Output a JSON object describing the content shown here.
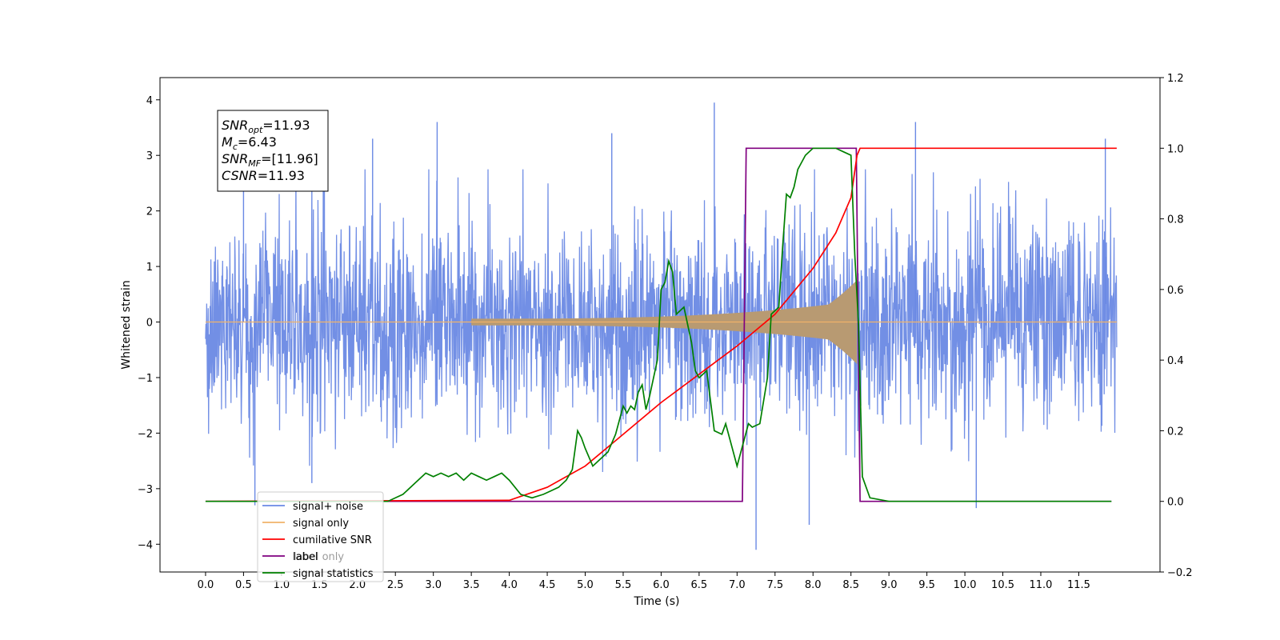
{
  "chart_data": {
    "type": "line",
    "xlabel": "Time (s)",
    "ylabel": "Whitened strain",
    "xlim": [
      -0.6,
      12.57
    ],
    "ylim": [
      -4.5,
      4.4
    ],
    "y2lim": [
      -0.2,
      1.2
    ],
    "x_ticks": [
      "0.0",
      "0.5",
      "1.0",
      "1.5",
      "2.0",
      "2.5",
      "3.0",
      "3.5",
      "4.0",
      "4.5",
      "5.0",
      "5.5",
      "6.0",
      "6.5",
      "7.0",
      "7.5",
      "8.0",
      "8.5",
      "9.0",
      "9.5",
      "10.0",
      "10.5",
      "11.0",
      "11.5"
    ],
    "y_ticks": [
      "4",
      "3",
      "2",
      "1",
      "0",
      "−1",
      "−2",
      "−3",
      "−4"
    ],
    "y2_ticks": [
      "1.2",
      "1.0",
      "0.8",
      "0.6",
      "0.4",
      "0.2",
      "0.0",
      "−0.2"
    ],
    "grid": false,
    "legend_position": "lower-left",
    "info_box": {
      "lines": [
        {
          "sym": "SNR",
          "sub": "opt",
          "val": "=11.93"
        },
        {
          "sym": "M",
          "sub": "c",
          "val": "=6.43"
        },
        {
          "sym": "SNR",
          "sub": "MF",
          "val": "=[11.96]"
        },
        {
          "sym": "CSNR",
          "sub": "",
          "val": "=11.93"
        }
      ]
    },
    "colors": {
      "noise": "#6a89e4",
      "signal": "#f0b26a",
      "cumsnr": "#ff0000",
      "label": "#800080",
      "stats": "#008000"
    },
    "legend": [
      {
        "name": "signal+ noise",
        "color": "#6a89e4"
      },
      {
        "name": "signal only",
        "color": "#f0b26a"
      },
      {
        "name": "cumilative SNR",
        "color": "#ff0000"
      },
      {
        "name": "label",
        "color": "#800080"
      },
      {
        "name": "label only",
        "color": "#800080",
        "hidden": true
      },
      {
        "name": "signal statistics",
        "color": "#008000"
      }
    ],
    "series": [
      {
        "name": "signal+ noise",
        "axis": "left",
        "kind": "noise_band",
        "x_range": [
          0.0,
          12.0
        ],
        "envelope": [
          -2.3,
          2.4
        ],
        "spike_peaks": [
          {
            "x": 0.5,
            "y": 2.9
          },
          {
            "x": 0.65,
            "y": -3.3
          },
          {
            "x": 1.4,
            "y": -2.9
          },
          {
            "x": 2.2,
            "y": 3.3
          },
          {
            "x": 3.05,
            "y": 3.6
          },
          {
            "x": 5.35,
            "y": 3.4
          },
          {
            "x": 6.7,
            "y": 3.95
          },
          {
            "x": 7.25,
            "y": -4.1
          },
          {
            "x": 7.95,
            "y": -3.65
          },
          {
            "x": 9.35,
            "y": 3.6
          },
          {
            "x": 10.15,
            "y": -3.35
          },
          {
            "x": 11.85,
            "y": 3.3
          }
        ]
      },
      {
        "name": "signal only",
        "axis": "left",
        "kind": "chirp",
        "t_start": 3.5,
        "t_merge": 8.58,
        "peak_amp": 1.1,
        "x_range": [
          0.0,
          12.0
        ]
      },
      {
        "name": "cumilative SNR",
        "axis": "right",
        "x": [
          0,
          4.0,
          4.5,
          5.0,
          5.5,
          6.0,
          6.5,
          7.0,
          7.5,
          8.0,
          8.3,
          8.5,
          8.58,
          8.62,
          12.0
        ],
        "values": [
          0,
          0.003,
          0.04,
          0.1,
          0.19,
          0.28,
          0.36,
          0.44,
          0.53,
          0.66,
          0.76,
          0.86,
          0.98,
          1.0,
          1.0
        ]
      },
      {
        "name": "label",
        "axis": "right",
        "x": [
          0,
          7.07,
          7.12,
          8.57,
          8.62,
          11.93
        ],
        "values": [
          0,
          0,
          1.0,
          1.0,
          0,
          0
        ]
      },
      {
        "name": "signal statistics",
        "axis": "right",
        "x": [
          0,
          2.4,
          2.6,
          2.75,
          2.9,
          3.0,
          3.1,
          3.2,
          3.3,
          3.4,
          3.5,
          3.6,
          3.7,
          3.8,
          3.9,
          4.0,
          4.15,
          4.3,
          4.45,
          4.55,
          4.65,
          4.75,
          4.83,
          4.9,
          4.95,
          5.0,
          5.1,
          5.2,
          5.3,
          5.4,
          5.5,
          5.55,
          5.6,
          5.65,
          5.7,
          5.75,
          5.8,
          5.85,
          5.9,
          5.95,
          6.0,
          6.05,
          6.1,
          6.15,
          6.2,
          6.3,
          6.4,
          6.45,
          6.5,
          6.6,
          6.7,
          6.8,
          6.85,
          6.9,
          7.0,
          7.05,
          7.15,
          7.2,
          7.3,
          7.4,
          7.45,
          7.55,
          7.6,
          7.65,
          7.7,
          7.75,
          7.8,
          7.9,
          8.0,
          8.1,
          8.2,
          8.3,
          8.4,
          8.5,
          8.55,
          8.6,
          8.65,
          8.75,
          9.0,
          11.93
        ],
        "values": [
          0,
          0.0,
          0.02,
          0.05,
          0.08,
          0.07,
          0.08,
          0.07,
          0.08,
          0.06,
          0.08,
          0.07,
          0.06,
          0.07,
          0.08,
          0.06,
          0.02,
          0.01,
          0.02,
          0.03,
          0.04,
          0.06,
          0.09,
          0.2,
          0.18,
          0.15,
          0.1,
          0.12,
          0.14,
          0.19,
          0.27,
          0.25,
          0.27,
          0.26,
          0.31,
          0.33,
          0.26,
          0.3,
          0.35,
          0.4,
          0.6,
          0.62,
          0.68,
          0.65,
          0.53,
          0.55,
          0.45,
          0.37,
          0.35,
          0.37,
          0.2,
          0.19,
          0.22,
          0.18,
          0.1,
          0.14,
          0.22,
          0.21,
          0.22,
          0.35,
          0.53,
          0.55,
          0.72,
          0.87,
          0.86,
          0.89,
          0.94,
          0.98,
          1.0,
          1.0,
          1.0,
          1.0,
          0.99,
          0.98,
          0.7,
          0.5,
          0.07,
          0.01,
          0.0,
          0.0
        ]
      }
    ]
  }
}
